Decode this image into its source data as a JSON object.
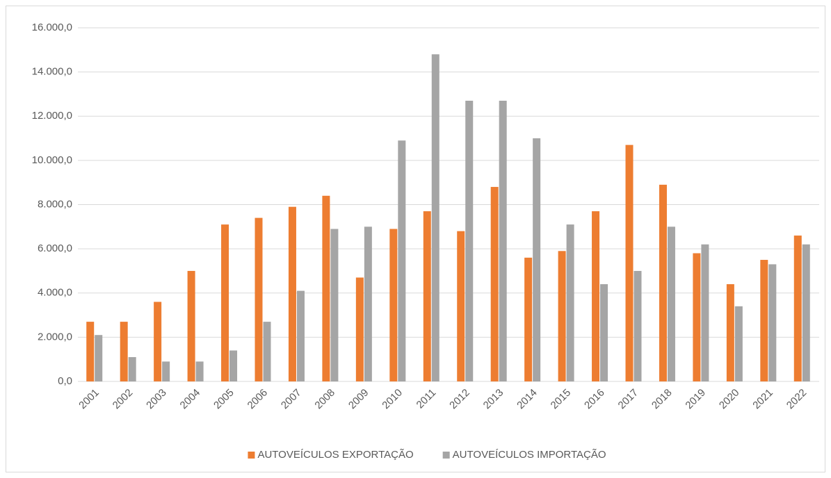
{
  "chart_data": {
    "type": "bar",
    "categories": [
      "2001",
      "2002",
      "2003",
      "2004",
      "2005",
      "2006",
      "2007",
      "2008",
      "2009",
      "2010",
      "2011",
      "2012",
      "2013",
      "2014",
      "2015",
      "2016",
      "2017",
      "2018",
      "2019",
      "2020",
      "2021",
      "2022"
    ],
    "series": [
      {
        "name": "AUTOVEÍCULOS EXPORTAÇÃO",
        "color": "#ed7d31",
        "values": [
          2700,
          2700,
          3600,
          5000,
          7100,
          7400,
          7900,
          8400,
          4700,
          6900,
          7700,
          6800,
          8800,
          5600,
          5900,
          7700,
          10700,
          8900,
          5800,
          4400,
          5500,
          6600
        ]
      },
      {
        "name": "AUTOVEÍCULOS IMPORTAÇÃO",
        "color": "#a5a5a5",
        "values": [
          2100,
          1100,
          900,
          900,
          1400,
          2700,
          4100,
          6900,
          7000,
          10900,
          14800,
          12700,
          12700,
          11000,
          7100,
          4400,
          5000,
          7000,
          6200,
          3400,
          5300,
          6200
        ]
      }
    ],
    "ylim": [
      0,
      16000
    ],
    "yticks": [
      {
        "value": 0,
        "label": "0,0"
      },
      {
        "value": 2000,
        "label": "2.000,0"
      },
      {
        "value": 4000,
        "label": "4.000,0"
      },
      {
        "value": 6000,
        "label": "6.000,0"
      },
      {
        "value": 8000,
        "label": "8.000,0"
      },
      {
        "value": 10000,
        "label": "10.000,0"
      },
      {
        "value": 12000,
        "label": "12.000,0"
      },
      {
        "value": 14000,
        "label": "14.000,0"
      },
      {
        "value": 16000,
        "label": "16.000,0"
      }
    ],
    "grid": true,
    "legend": "bottom"
  }
}
